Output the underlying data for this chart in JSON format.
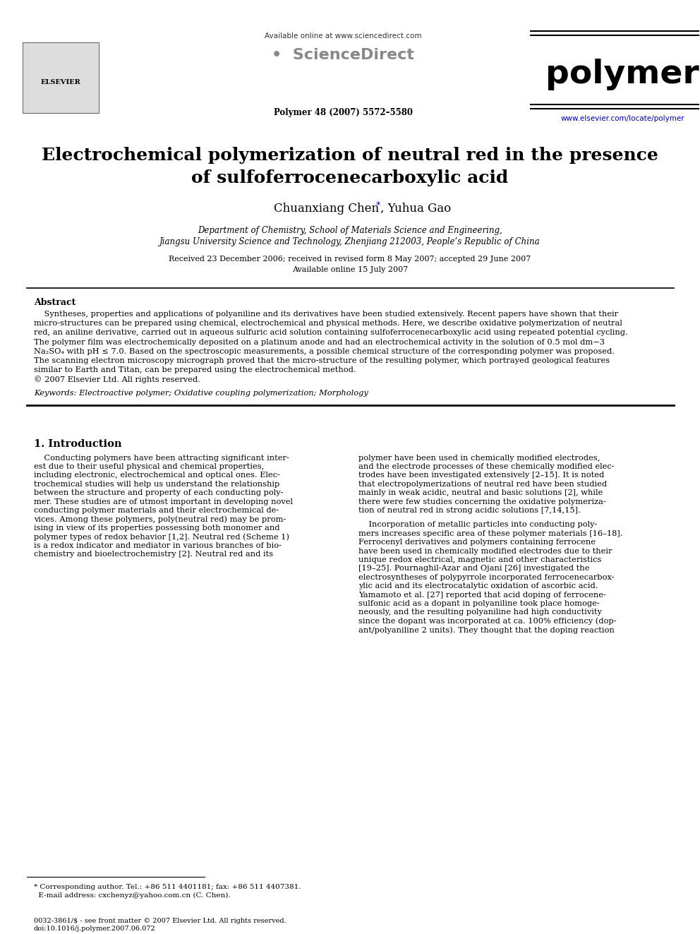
{
  "bg_color": "#ffffff",
  "available_online_text": "Available online at www.sciencedirect.com",
  "journal_info_text": "Polymer 48 (2007) 5572–5580",
  "journal_name": "polymer",
  "website_url": "www.elsevier.com/locate/polymer",
  "title_line1": "Electrochemical polymerization of neutral red in the presence",
  "title_line2": "of sulfoferrocenecarboxylic acid",
  "authors_pre": "Chuanxiang Chen",
  "authors_post": ", Yuhua Gao",
  "affiliation1": "Department of Chemistry, School of Materials Science and Engineering,",
  "affiliation2": "Jiangsu University Science and Technology, Zhenjiang 212003, People’s Republic of China",
  "dates": "Received 23 December 2006; received in revised form 8 May 2007; accepted 29 June 2007",
  "available_online": "Available online 15 July 2007",
  "abstract_heading": "Abstract",
  "abstract_text": "    Syntheses, properties and applications of polyaniline and its derivatives have been studied extensively. Recent papers have shown that their\nmicro-structures can be prepared using chemical, electrochemical and physical methods. Here, we describe oxidative polymerization of neutral\nred, an aniline derivative, carried out in aqueous sulfuric acid solution containing sulfoferrocenecarboxylic acid using repeated potential cycling.\nThe polymer film was electrochemically deposited on a platinum anode and had an electrochemical activity in the solution of 0.5 mol dm−3\nNa₂SO₄ with pH ≤ 7.0. Based on the spectroscopic measurements, a possible chemical structure of the corresponding polymer was proposed.\nThe scanning electron microscopy micrograph proved that the micro-structure of the resulting polymer, which portrayed geological features\nsimilar to Earth and Titan, can be prepared using the electrochemical method.\n© 2007 Elsevier Ltd. All rights reserved.",
  "keywords_text": "Keywords: Electroactive polymer; Oxidative coupling polymerization; Morphology",
  "section1_heading": "1. Introduction",
  "intro_col1": "    Conducting polymers have been attracting significant inter-\nest due to their useful physical and chemical properties,\nincluding electronic, electrochemical and optical ones. Elec-\ntrochemical studies will help us understand the relationship\nbetween the structure and property of each conducting poly-\nmer. These studies are of utmost important in developing novel\nconducting polymer materials and their electrochemical de-\nvices. Among these polymers, poly(neutral red) may be prom-\nising in view of its properties possessing both monomer and\npolymer types of redox behavior [1,2]. Neutral red (Scheme 1)\nis a redox indicator and mediator in various branches of bio-\nchemistry and bioelectrochemistry [2]. Neutral red and its",
  "intro_col2_p1": "polymer have been used in chemically modified electrodes,\nand the electrode processes of these chemically modified elec-\ntrodes have been investigated extensively [2–15]. It is noted\nthat electropolymerizations of neutral red have been studied\nmainly in weak acidic, neutral and basic solutions [2], while\nthere were few studies concerning the oxidative polymeriza-\ntion of neutral red in strong acidic solutions [7,14,15].",
  "intro_col2_p2": "    Incorporation of metallic particles into conducting poly-\nmers increases specific area of these polymer materials [16–18].\nFerrocenyl derivatives and polymers containing ferrocene\nhave been used in chemically modified electrodes due to their\nunique redox electrical, magnetic and other characteristics\n[19–25]. Pournaghil-Azar and Ojani [26] investigated the\nelectrosyntheses of polypyrrole incorporated ferrocenecarbox-\nylic acid and its electrocatalytic oxidation of ascorbic acid.\nYamamoto et al. [27] reported that acid doping of ferrocene-\nsulfonic acid as a dopant in polyaniline took place homoge-\nneously, and the resulting polyaniline had high conductivity\nsince the dopant was incorporated at ca. 100% efficiency (dop-\nant/polyaniline 2 units). They thought that the doping reaction",
  "footnote": "* Corresponding author. Tel.: +86 511 4401181; fax: +86 511 4407381.\n  E-mail address: cxchenyz@yahoo.com.cn (C. Chen).",
  "footer": "0032-3861/$ - see front matter © 2007 Elsevier Ltd. All rights reserved.\ndoi:10.1016/j.polymer.2007.06.072"
}
